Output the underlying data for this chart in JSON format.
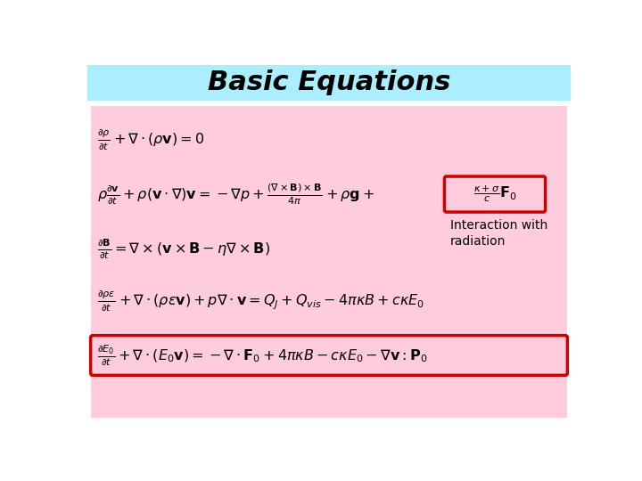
{
  "title": "Basic Equations",
  "title_bg": "#aaeeff",
  "main_bg": "#ffccdd",
  "slide_bg": "#ffffff",
  "eq1": "$\\frac{\\partial \\rho}{\\partial t} + \\nabla \\cdot (\\rho\\mathbf{v}) = 0$",
  "eq2a": "$\\rho\\frac{\\partial \\mathbf{v}}{\\partial t} + \\rho(\\mathbf{v} \\cdot \\nabla)\\mathbf{v} = -\\nabla p + \\frac{(\\nabla \\times \\mathbf{B}) \\times \\mathbf{B}}{4\\pi} + \\rho\\mathbf{g} +$",
  "eq2b": "$\\frac{\\kappa + \\sigma}{c}\\mathbf{F}_0$",
  "eq3": "$\\frac{\\partial \\mathbf{B}}{\\partial t} = \\nabla \\times \\left(\\mathbf{v} \\times \\mathbf{B} - \\eta\\nabla \\times \\mathbf{B}\\right)$",
  "eq4": "$\\frac{\\partial \\rho\\varepsilon}{\\partial t} + \\nabla \\cdot (\\rho\\varepsilon\\mathbf{v}) + p\\nabla \\cdot \\mathbf{v} = Q_J + Q_{vis} - 4\\pi\\kappa B + c\\kappa E_0$",
  "eq5": "$\\frac{\\partial E_0}{\\partial t} + \\nabla \\cdot \\left(E_0\\mathbf{v}\\right) = -\\nabla \\cdot \\mathbf{F}_0 + 4\\pi\\kappa B - c\\kappa E_0 - \\nabla\\mathbf{v}:\\mathbf{P}_0$",
  "interaction_label": "Interaction with\nradiation",
  "eq_color": "#000000",
  "box_color": "#cc0000",
  "title_fontsize": 22,
  "eq_fontsize": 11.5
}
